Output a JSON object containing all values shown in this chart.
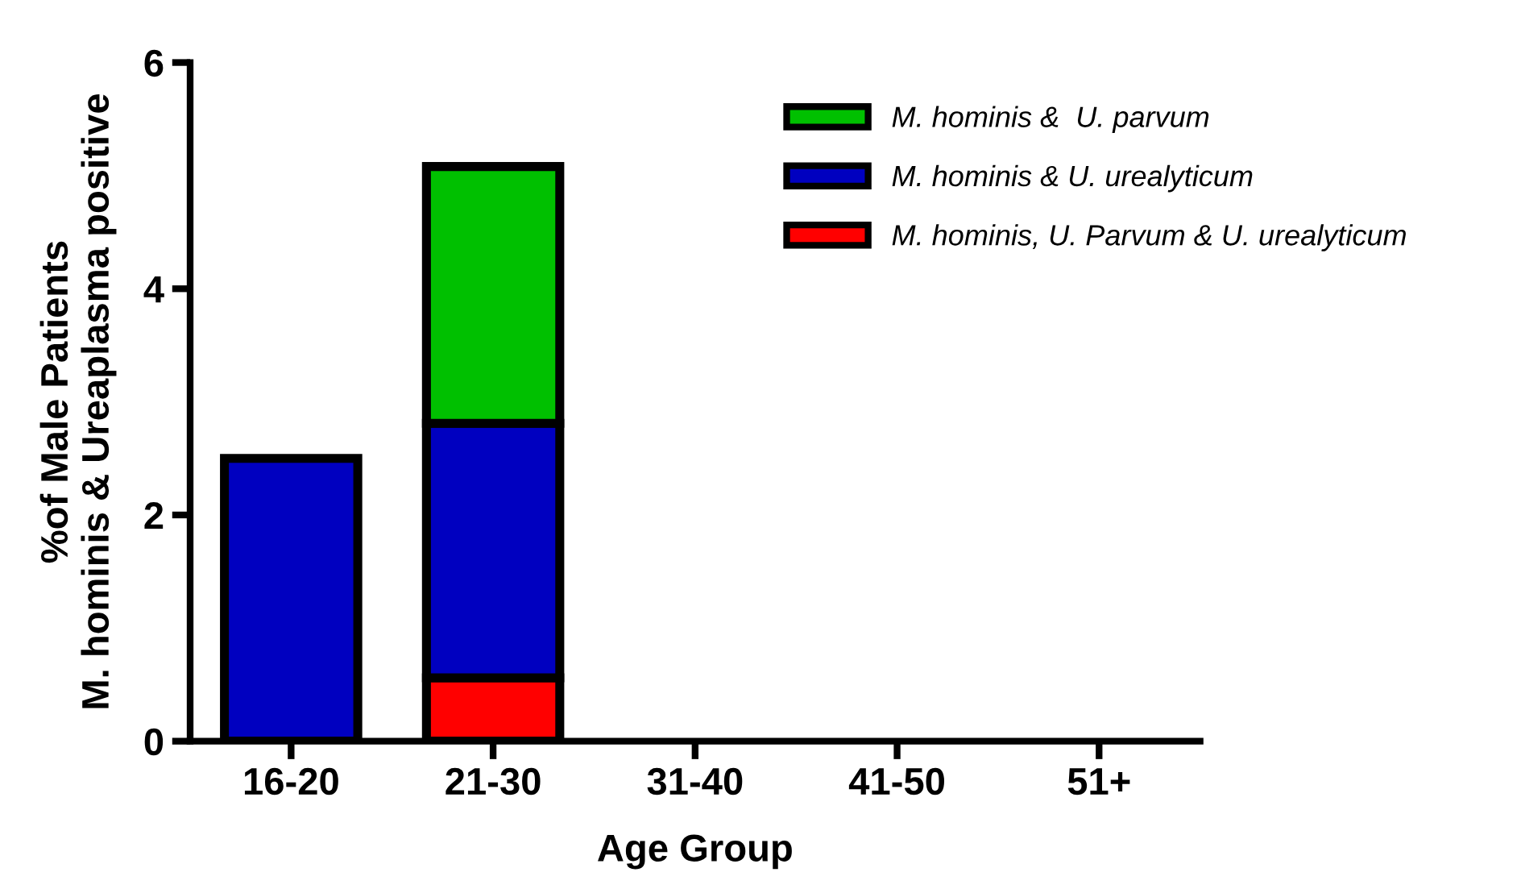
{
  "chart_data": {
    "type": "bar",
    "stacked": true,
    "xlabel": "Age Group",
    "ylabel": "%of Male Patients\nM. hominis & Ureaplasma positive",
    "categories": [
      "16-20",
      "21-30",
      "31-40",
      "41-50",
      "51+"
    ],
    "series": [
      {
        "name": "M. hominis, U. Parvum & U. urealyticum",
        "color": "#ff0000",
        "values": [
          0,
          0.56,
          0,
          0,
          0
        ]
      },
      {
        "name": "M. hominis & U. urealyticum",
        "color": "#0000c0",
        "values": [
          2.5,
          2.25,
          0,
          0,
          0
        ]
      },
      {
        "name": "M. hominis &  U. parvum",
        "color": "#00c000",
        "values": [
          0,
          2.27,
          0,
          0,
          0
        ]
      }
    ],
    "ylim": [
      0,
      6
    ],
    "yticks": [
      0,
      2,
      4,
      6
    ],
    "grid": false,
    "legend": "right"
  }
}
